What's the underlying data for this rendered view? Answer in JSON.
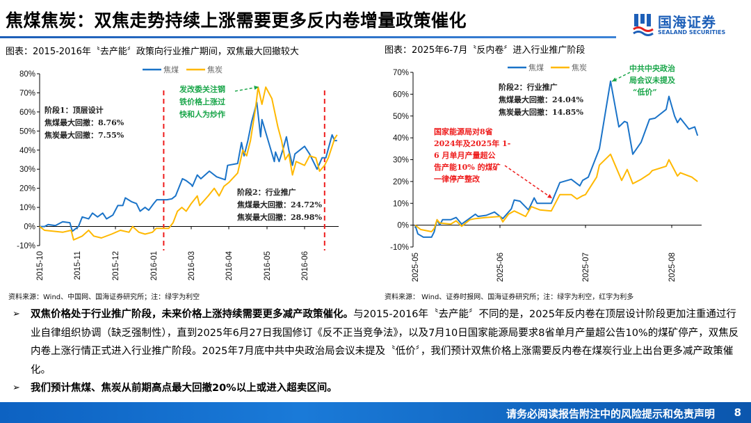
{
  "header": {
    "title": "焦煤焦炭：双焦走势持续上涨需要更多反内卷增量政策催化",
    "logo_cn": "国海证券",
    "logo_en": "SEALAND SECURITIES",
    "accent": "#1d5fb8"
  },
  "charts": {
    "left": {
      "title": "图表：2015-2016年〝去产能〞政策向行业推广期间，双焦最大回撤较大",
      "source": "资料来源：Wind、中国网、国海证券研究所；注：绿字为利空",
      "annotations": {
        "stage1": [
          "阶段1：顶层设计",
          "焦煤最大回撤：8.76%",
          "焦炭最大回撤：7.55%"
        ],
        "green": [
          "发改委关注钢",
          "铁价格上涨过",
          "快和人为炒作"
        ],
        "stage2": [
          "阶段2：行业推广",
          "焦煤最大回撤：24.72%",
          "焦炭最大回撤：28.98%"
        ]
      }
    },
    "right": {
      "title": "图表：2025年6-7月〝反内卷〞进入行业推广阶段",
      "source": "资料来源：  Wind、证券时报网、国海证券研究所；注：绿字为利空，红字为利多",
      "annotations": {
        "stage2": [
          "阶段2：行业推广",
          "焦煤最大回撤：24.04%",
          "焦炭最大回撤：14.85%"
        ],
        "red": [
          "国家能源局对8省",
          "2024年及2025年 1-",
          "6 月单月产量超公",
          "告产能10% 的煤矿",
          "一律停产整改"
        ],
        "green": [
          "中共中央政治",
          "局会议未提及",
          "“低价”"
        ]
      }
    }
  },
  "chart_data": [
    {
      "type": "line",
      "title": "图表：2015-2016年〝去产能〞政策向行业推广期间，双焦最大回撤较大",
      "xlabel": "",
      "ylabel": "",
      "ylim": [
        -10,
        80
      ],
      "yticks": [
        "-10%",
        "0%",
        "10%",
        "20%",
        "30%",
        "40%",
        "50%",
        "60%",
        "70%",
        "80%"
      ],
      "xticks": [
        "2015-10",
        "2015-11",
        "2015-12",
        "2016-01",
        "2016-03",
        "2016-04",
        "2016-05",
        "2016-06"
      ],
      "legend": "top-center",
      "grid": false,
      "markers": {
        "red_dashed_vlines": [
          "2016-01-17",
          "2016-06-17"
        ]
      },
      "series": [
        {
          "name": "焦煤",
          "color": "#1a73c8",
          "points": [
            [
              "2015-10-01",
              0
            ],
            [
              "2015-10-05",
              0
            ],
            [
              "2015-10-08",
              1
            ],
            [
              "2015-10-14",
              0.5
            ],
            [
              "2015-10-20",
              2.5
            ],
            [
              "2015-10-26",
              2
            ],
            [
              "2015-10-28",
              -2.5
            ],
            [
              "2015-11-02",
              0
            ],
            [
              "2015-11-05",
              5
            ],
            [
              "2015-11-10",
              4
            ],
            [
              "2015-11-13",
              7
            ],
            [
              "2015-11-17",
              5
            ],
            [
              "2015-11-21",
              7
            ],
            [
              "2015-11-24",
              4
            ],
            [
              "2015-11-29",
              6
            ],
            [
              "2015-12-03",
              11
            ],
            [
              "2015-12-07",
              11
            ],
            [
              "2015-12-09",
              15
            ],
            [
              "2015-12-14",
              13
            ],
            [
              "2015-12-18",
              12
            ],
            [
              "2015-12-21",
              8
            ],
            [
              "2015-12-25",
              10
            ],
            [
              "2015-12-28",
              8.5
            ],
            [
              "2016-01-01",
              12
            ],
            [
              "2016-01-06",
              14
            ],
            [
              "2016-01-12",
              14
            ],
            [
              "2016-01-22",
              14
            ],
            [
              "2016-01-30",
              14.5
            ],
            [
              "2016-02-05",
              16
            ],
            [
              "2016-02-16",
              25
            ],
            [
              "2016-02-22",
              24
            ],
            [
              "2016-03-01",
              22
            ],
            [
              "2016-03-02",
              21
            ],
            [
              "2016-03-06",
              27
            ],
            [
              "2016-03-09",
              25
            ],
            [
              "2016-03-16",
              29
            ],
            [
              "2016-03-22",
              26
            ],
            [
              "2016-03-29",
              24.5
            ],
            [
              "2016-03-31",
              32
            ],
            [
              "2016-04-08",
              33
            ],
            [
              "2016-04-11",
              44
            ],
            [
              "2016-04-13",
              37
            ],
            [
              "2016-04-16",
              45
            ],
            [
              "2016-04-19",
              55
            ],
            [
              "2016-04-23",
              65
            ],
            [
              "2016-04-26",
              47
            ],
            [
              "2016-04-27",
              56
            ],
            [
              "2016-05-01",
              47
            ],
            [
              "2016-05-07",
              34
            ],
            [
              "2016-05-08",
              39
            ],
            [
              "2016-05-11",
              34
            ],
            [
              "2016-05-14",
              40
            ],
            [
              "2016-05-17",
              47
            ],
            [
              "2016-05-19",
              40
            ],
            [
              "2016-05-22",
              32
            ],
            [
              "2016-05-24",
              38
            ],
            [
              "2016-06-01",
              42
            ],
            [
              "2016-06-05",
              38
            ],
            [
              "2016-06-11",
              30
            ],
            [
              "2016-06-15",
              36
            ],
            [
              "2016-06-18",
              36
            ],
            [
              "2016-06-23",
              48
            ],
            [
              "2016-06-25",
              45
            ],
            [
              "2016-06-27",
              45
            ]
          ]
        },
        {
          "name": "焦炭",
          "color": "#ffb800",
          "points": [
            [
              "2015-10-01",
              0
            ],
            [
              "2015-10-05",
              -2
            ],
            [
              "2015-10-20",
              -3
            ],
            [
              "2015-10-27",
              -2
            ],
            [
              "2015-10-29",
              -7
            ],
            [
              "2015-11-05",
              -5
            ],
            [
              "2015-11-10",
              -2
            ],
            [
              "2015-11-14",
              -5
            ],
            [
              "2015-11-20",
              -6
            ],
            [
              "2015-11-28",
              -4
            ],
            [
              "2015-12-05",
              -2
            ],
            [
              "2015-12-12",
              -3
            ],
            [
              "2015-12-15",
              0
            ],
            [
              "2015-12-20",
              -3
            ],
            [
              "2015-12-25",
              -4
            ],
            [
              "2015-12-31",
              -3
            ],
            [
              "2016-01-05",
              -1
            ],
            [
              "2016-01-12",
              -1
            ],
            [
              "2016-01-25",
              -1
            ],
            [
              "2016-02-01",
              2
            ],
            [
              "2016-02-08",
              8
            ],
            [
              "2016-02-15",
              10
            ],
            [
              "2016-02-22",
              8
            ],
            [
              "2016-03-01",
              12
            ],
            [
              "2016-03-06",
              16
            ],
            [
              "2016-03-08",
              11
            ],
            [
              "2016-03-15",
              16
            ],
            [
              "2016-03-20",
              20
            ],
            [
              "2016-03-24",
              16
            ],
            [
              "2016-03-28",
              21
            ],
            [
              "2016-04-01",
              23
            ],
            [
              "2016-04-08",
              28
            ],
            [
              "2016-04-12",
              40
            ],
            [
              "2016-04-15",
              37
            ],
            [
              "2016-04-18",
              45
            ],
            [
              "2016-04-22",
              62
            ],
            [
              "2016-04-24",
              73
            ],
            [
              "2016-04-27",
              64
            ],
            [
              "2016-04-30",
              73
            ],
            [
              "2016-05-05",
              67
            ],
            [
              "2016-05-10",
              52
            ],
            [
              "2016-05-13",
              45
            ],
            [
              "2016-05-16",
              35
            ],
            [
              "2016-05-19",
              38
            ],
            [
              "2016-05-22",
              27
            ],
            [
              "2016-05-25",
              34
            ],
            [
              "2016-06-01",
              32
            ],
            [
              "2016-06-05",
              37
            ],
            [
              "2016-06-10",
              36
            ],
            [
              "2016-06-13",
              29
            ],
            [
              "2016-06-17",
              32
            ],
            [
              "2016-06-20",
              36
            ],
            [
              "2016-06-25",
              46
            ],
            [
              "2016-06-27",
              48
            ]
          ]
        }
      ]
    },
    {
      "type": "line",
      "title": "图表：2025年6-7月〝反内卷〞进入行业推广阶段",
      "xlabel": "",
      "ylabel": "",
      "ylim": [
        -10,
        70
      ],
      "yticks": [
        "-10%",
        "0%",
        "10%",
        "20%",
        "30%",
        "40%",
        "50%",
        "60%",
        "70%"
      ],
      "xticks": [
        "2025-05",
        "2025-06",
        "2025-07",
        "2025-08"
      ],
      "legend": "top-center",
      "grid": false,
      "series": [
        {
          "name": "焦煤",
          "color": "#1a73c8",
          "points": [
            [
              "2025-05-01",
              0
            ],
            [
              "2025-05-02",
              -4
            ],
            [
              "2025-05-04",
              -5.5
            ],
            [
              "2025-05-07",
              -5.5
            ],
            [
              "2025-05-08",
              -3
            ],
            [
              "2025-05-09",
              2.5
            ],
            [
              "2025-05-10",
              0
            ],
            [
              "2025-05-11",
              2.5
            ],
            [
              "2025-05-14",
              2.5
            ],
            [
              "2025-05-16",
              3.5
            ],
            [
              "2025-05-18",
              0.5
            ],
            [
              "2025-05-23",
              5
            ],
            [
              "2025-05-24",
              4
            ],
            [
              "2025-05-27",
              4.5
            ],
            [
              "2025-05-30",
              6
            ],
            [
              "2025-06-02",
              3
            ],
            [
              "2025-06-05",
              7.5
            ],
            [
              "2025-06-06",
              11.5
            ],
            [
              "2025-06-08",
              11
            ],
            [
              "2025-06-11",
              7
            ],
            [
              "2025-06-13",
              12.5
            ],
            [
              "2025-06-14",
              10
            ],
            [
              "2025-06-19",
              10
            ],
            [
              "2025-06-22",
              19.5
            ],
            [
              "2025-06-26",
              21
            ],
            [
              "2025-06-29",
              18
            ],
            [
              "2025-06-30",
              20.5
            ],
            [
              "2025-07-02",
              22
            ],
            [
              "2025-07-06",
              35
            ],
            [
              "2025-07-10",
              66
            ],
            [
              "2025-07-13",
              45
            ],
            [
              "2025-07-15",
              47.5
            ],
            [
              "2025-07-16",
              47
            ],
            [
              "2025-07-18",
              32.5
            ],
            [
              "2025-07-21",
              38
            ],
            [
              "2025-07-24",
              48.5
            ],
            [
              "2025-07-26",
              49
            ],
            [
              "2025-07-30",
              53
            ],
            [
              "2025-07-31",
              59
            ],
            [
              "2025-08-02",
              50
            ],
            [
              "2025-08-03",
              47
            ],
            [
              "2025-08-04",
              49
            ],
            [
              "2025-08-07",
              44
            ],
            [
              "2025-08-09",
              45
            ],
            [
              "2025-08-10",
              41
            ]
          ]
        },
        {
          "name": "焦炭",
          "color": "#ffb800",
          "points": [
            [
              "2025-05-01",
              0
            ],
            [
              "2025-05-03",
              -2
            ],
            [
              "2025-05-07",
              -3
            ],
            [
              "2025-05-08",
              -1.5
            ],
            [
              "2025-05-09",
              2.5
            ],
            [
              "2025-05-10",
              1
            ],
            [
              "2025-05-14",
              0.5
            ],
            [
              "2025-05-16",
              2
            ],
            [
              "2025-05-18",
              -0.5
            ],
            [
              "2025-05-21",
              2.5
            ],
            [
              "2025-05-23",
              3
            ],
            [
              "2025-05-27",
              3.5
            ],
            [
              "2025-06-01",
              4
            ],
            [
              "2025-06-02",
              1.5
            ],
            [
              "2025-06-04",
              5
            ],
            [
              "2025-06-06",
              6.5
            ],
            [
              "2025-06-10",
              4
            ],
            [
              "2025-06-12",
              8.5
            ],
            [
              "2025-06-15",
              7
            ],
            [
              "2025-06-19",
              6.5
            ],
            [
              "2025-06-22",
              14
            ],
            [
              "2025-06-26",
              14
            ],
            [
              "2025-06-28",
              12
            ],
            [
              "2025-06-30",
              13.5
            ],
            [
              "2025-07-01",
              14
            ],
            [
              "2025-07-05",
              22
            ],
            [
              "2025-07-06",
              27.5
            ],
            [
              "2025-07-10",
              32.5
            ],
            [
              "2025-07-14",
              20.5
            ],
            [
              "2025-07-16",
              25.5
            ],
            [
              "2025-07-18",
              19
            ],
            [
              "2025-07-21",
              21
            ],
            [
              "2025-07-24",
              23.5
            ],
            [
              "2025-07-25",
              25
            ],
            [
              "2025-07-30",
              27
            ],
            [
              "2025-07-31",
              30
            ],
            [
              "2025-08-03",
              22.5
            ],
            [
              "2025-08-04",
              24
            ],
            [
              "2025-08-08",
              22
            ],
            [
              "2025-08-10",
              20
            ]
          ]
        }
      ]
    }
  ],
  "body": {
    "bullet1_bold": "双焦价格处于行业推广阶段，未来价格上涨持续需要更多减产政策催化。",
    "bullet1_text": "与2015-2016年〝去产能〞不同的是，2025年反内卷在顶层设计阶段更加注重通过行业自律组织协调（缺乏强制性），直到2025年6月27日我国修订《反不正当竞争法》，以及7月10日国家能源局要求8省单月产量超公告10%的煤矿停产，双焦反内卷上涨行情正式进入行业推广阶段。2025年7月底中共中央政治局会议未提及〝低价〞，我们预计双焦价格上涨需要反内卷在煤炭行业上出台更多减产政策催化。",
    "bullet2_bold": "我们预计焦煤、焦炭从前期高点最大回撤20%以上或进入超卖区间。",
    "bullet_glyph": "➢"
  },
  "footer": {
    "disclaimer": "请务必阅读报告附注中的风险提示和免责声明",
    "page": "8"
  }
}
